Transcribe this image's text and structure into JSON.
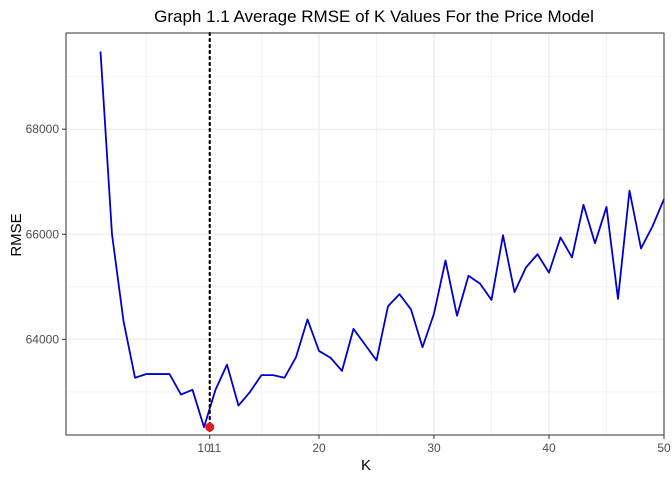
{
  "chart_data": {
    "type": "line",
    "title": "Graph 1.1 Average RMSE of K Values For the Price Model",
    "xlabel": "K",
    "ylabel": "RMSE",
    "xlim": [
      -2,
      50
    ],
    "ylim": [
      62180,
      69830
    ],
    "xticks": [
      20,
      30,
      40,
      50
    ],
    "xtick_labels": [
      "20",
      "30",
      "40",
      "50"
    ],
    "extra_xtick_labels": [
      {
        "value": 10,
        "label": "10"
      },
      {
        "value": 11,
        "label": "11"
      }
    ],
    "yticks": [
      64000,
      66000,
      68000
    ],
    "ytick_labels": [
      "64000",
      "66000",
      "68000"
    ],
    "grid": true,
    "legend": "none",
    "series": [
      {
        "color": "#0000cc",
        "x": [
          1,
          2,
          3,
          4,
          5,
          6,
          7,
          8,
          9,
          10,
          11,
          12,
          13,
          14,
          15,
          16,
          17,
          18,
          19,
          20,
          21,
          22,
          23,
          24,
          25,
          26,
          27,
          28,
          29,
          30,
          31,
          32,
          33,
          34,
          35,
          36,
          37,
          38,
          39,
          40,
          41,
          42,
          43,
          44,
          45,
          46,
          47,
          48,
          49,
          50
        ],
        "values": [
          69480,
          66000,
          64350,
          63270,
          63340,
          63340,
          63340,
          62950,
          63040,
          62330,
          63040,
          63520,
          62740,
          63000,
          63320,
          63320,
          63270,
          63660,
          64380,
          63780,
          63650,
          63400,
          64200,
          63900,
          63600,
          64630,
          64860,
          64570,
          63850,
          64490,
          65500,
          64450,
          65210,
          65060,
          64750,
          65980,
          64900,
          65370,
          65620,
          65270,
          65940,
          65560,
          66560,
          65830,
          66520,
          64770,
          66830,
          65730,
          66150,
          66670
        ]
      }
    ],
    "reference_line": {
      "x": 10.5,
      "style": "dotted",
      "color": "#000000"
    },
    "highlight_point": {
      "x": 10.5,
      "y": 62330,
      "color": "#e41a1c"
    }
  }
}
